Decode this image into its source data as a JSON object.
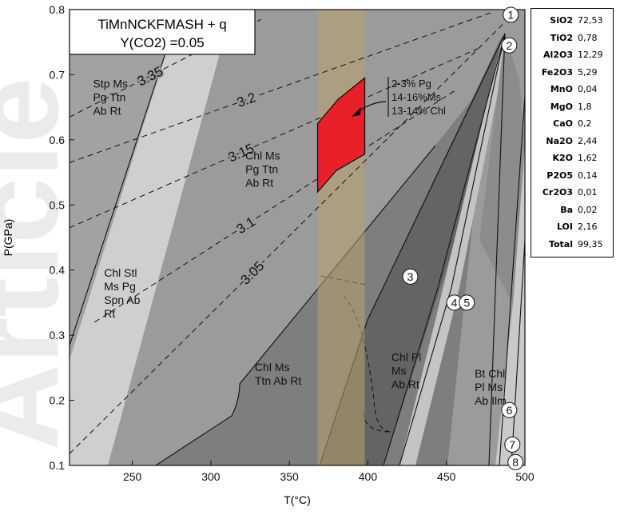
{
  "chart_data": {
    "type": "phase-diagram",
    "title": "TiMnNCKFMASH + q",
    "subtitle": "Y(CO2) =0.05",
    "xlabel": "T(°C)",
    "ylabel": "P(GPa)",
    "xlim": [
      210,
      500
    ],
    "ylim": [
      0.1,
      0.8
    ],
    "x_ticks": [
      "250",
      "300",
      "350",
      "400",
      "450",
      "500"
    ],
    "y_ticks": [
      "0.1",
      "0.2",
      "0.3",
      "0.4",
      "0.5",
      "0.6",
      "0.7",
      "0.8"
    ],
    "field_labels": [
      {
        "lines": [
          "Stp Ms",
          "Pg Ttn",
          "Ab Rt"
        ],
        "T": 225,
        "P": 0.68
      },
      {
        "lines": [
          "Chl Stl",
          "Ms Pg",
          "Spn Ab",
          "Rt"
        ],
        "T": 232,
        "P": 0.39
      },
      {
        "lines": [
          "Chl Ms",
          "Pg Ttn",
          "Ab Rt"
        ],
        "T": 322,
        "P": 0.57
      },
      {
        "lines": [
          "Chl Ms",
          "Ttn Ab Rt"
        ],
        "T": 328,
        "P": 0.245
      },
      {
        "lines": [
          "Chl Pl",
          "Ms",
          "Ab Rt"
        ],
        "T": 415,
        "P": 0.26
      },
      {
        "lines": [
          "Bt Chl",
          "Pl Ms",
          "Ab Ilm"
        ],
        "T": 468,
        "P": 0.235
      }
    ],
    "isopleths": [
      {
        "label": "3.35",
        "points": [
          [
            210,
            0.635
          ],
          [
            332,
            0.785
          ]
        ]
      },
      {
        "label": "3.2",
        "points": [
          [
            210,
            0.565
          ],
          [
            478,
            0.795
          ]
        ]
      },
      {
        "label": "3.15",
        "points": [
          [
            210,
            0.465
          ],
          [
            470,
            0.74
          ]
        ]
      },
      {
        "label": "3.1",
        "points": [
          [
            226,
            0.32
          ],
          [
            455,
            0.675
          ]
        ]
      },
      {
        "label": "3.05",
        "points": [
          [
            210,
            0.118
          ],
          [
            487,
            0.78
          ]
        ]
      }
    ],
    "highlight_band": {
      "T": [
        368,
        398
      ],
      "color": "#b9a06a"
    },
    "assemblage_field": {
      "color": "#e8202a",
      "polygon": [
        [
          368,
          0.52
        ],
        [
          368,
          0.625
        ],
        [
          381,
          0.662
        ],
        [
          398,
          0.695
        ],
        [
          398,
          0.578
        ],
        [
          380,
          0.553
        ]
      ],
      "annotation": [
        "2-3% Pg",
        "14-16%Ms",
        "13-14% Chl"
      ]
    },
    "reaction_markers": [
      {
        "label": "1",
        "T": 491,
        "P": 0.792
      },
      {
        "label": "2",
        "T": 490,
        "P": 0.745
      },
      {
        "label": "3",
        "T": 427,
        "P": 0.39
      },
      {
        "label": "4",
        "T": 455,
        "P": 0.35
      },
      {
        "label": "5",
        "T": 463,
        "P": 0.35
      },
      {
        "label": "6",
        "T": 490,
        "P": 0.185
      },
      {
        "label": "7",
        "T": 492,
        "P": 0.132
      },
      {
        "label": "8",
        "T": 494,
        "P": 0.105
      }
    ],
    "bulk_composition": [
      {
        "oxide": "SiO2",
        "wt": "72,53"
      },
      {
        "oxide": "TiO2",
        "wt": "0,78"
      },
      {
        "oxide": "Al2O3",
        "wt": "12,29"
      },
      {
        "oxide": "Fe2O3",
        "wt": "5,29"
      },
      {
        "oxide": "MnO",
        "wt": "0,04"
      },
      {
        "oxide": "MgO",
        "wt": "1,8"
      },
      {
        "oxide": "CaO",
        "wt": "0,2"
      },
      {
        "oxide": "Na2O",
        "wt": "2,44"
      },
      {
        "oxide": "K2O",
        "wt": "1,62"
      },
      {
        "oxide": "P2O5",
        "wt": "0,14"
      },
      {
        "oxide": "Cr2O3",
        "wt": "0,01"
      },
      {
        "oxide": "Ba",
        "wt": "0,02"
      },
      {
        "oxide": "LOI",
        "wt": "2,16"
      },
      {
        "oxide": "Total",
        "wt": "99,35"
      }
    ],
    "watermark": "Article",
    "colors": {
      "field_medium": "#a0a0a0",
      "field_dark": "#7e7e7e",
      "field_darker": "#636363",
      "field_light": "#cfcfcf",
      "background": "#9b9b9b"
    }
  }
}
